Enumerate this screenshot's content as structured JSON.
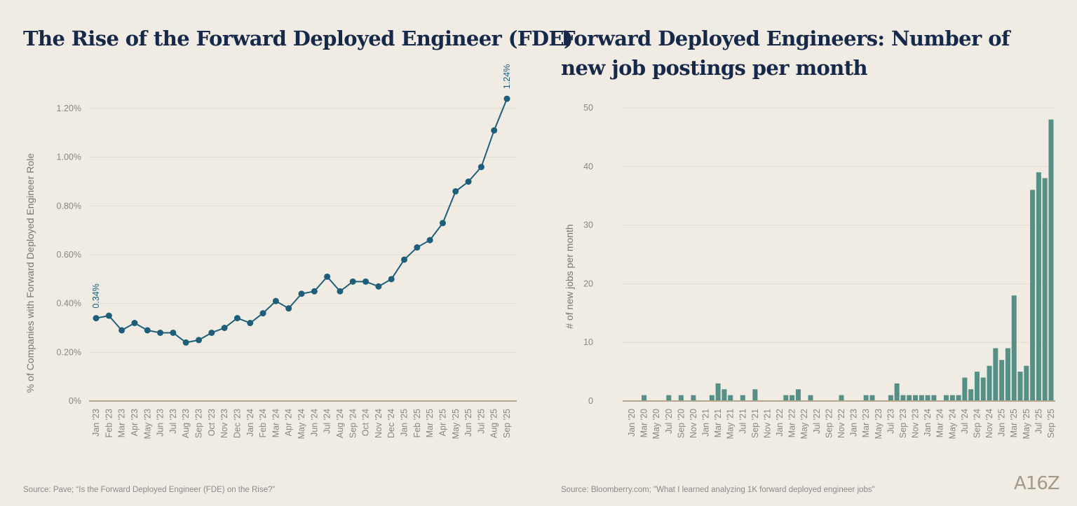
{
  "left": {
    "title": "The Rise of the Forward Deployed Engineer (FDE)",
    "source": "Source: Pave; “Is the Forward Deployed Engineer (FDE) on the Rise?”"
  },
  "right": {
    "title": "Forward Deployed Engineers: Number of new job postings per month",
    "source": "Source: Bloomberry.com; \"What I learned analyzing 1K forward deployed engineer jobs\""
  },
  "logo": "A16Z",
  "colors": {
    "line": "#1d5f7a",
    "bar": "#558f86",
    "grid": "#e2dcc8",
    "axis": "#b3a78f",
    "title": "#16294a"
  },
  "chart_data": [
    {
      "type": "line",
      "ylabel": "% of Companies with Forward Deployed Engineer Role",
      "ylim": [
        0,
        1.3
      ],
      "yticks": [
        "0%",
        "0.20%",
        "0.40%",
        "0.60%",
        "0.80%",
        "1.00%",
        "1.20%"
      ],
      "ytick_values": [
        0,
        0.2,
        0.4,
        0.6,
        0.8,
        1.0,
        1.2
      ],
      "grid": true,
      "annotations": [
        "0.34%",
        "1.24%"
      ],
      "categories": [
        "Jan '23",
        "Feb '23",
        "Mar '23",
        "Apr '23",
        "May '23",
        "Jun '23",
        "Jul '23",
        "Aug '23",
        "Sep '23",
        "Oct '23",
        "Nov '23",
        "Dec '23",
        "Jan '24",
        "Feb '24",
        "Mar '24",
        "Apr '24",
        "May '24",
        "Jun '24",
        "Jul '24",
        "Aug '24",
        "Sep '24",
        "Oct '24",
        "Nov '24",
        "Dec '24",
        "Jan '25",
        "Feb '25",
        "Mar '25",
        "Apr '25",
        "May '25",
        "Jun '25",
        "Jul '25",
        "Aug '25",
        "Sep '25"
      ],
      "values": [
        0.34,
        0.35,
        0.29,
        0.32,
        0.29,
        0.28,
        0.28,
        0.24,
        0.25,
        0.28,
        0.3,
        0.34,
        0.32,
        0.36,
        0.41,
        0.38,
        0.44,
        0.45,
        0.51,
        0.45,
        0.49,
        0.49,
        0.47,
        0.5,
        0.58,
        0.63,
        0.66,
        0.73,
        0.86,
        0.9,
        0.96,
        1.11,
        1.24
      ]
    },
    {
      "type": "bar",
      "ylabel": "# of new jobs per month",
      "ylim": [
        0,
        50
      ],
      "yticks": [
        "0",
        "10",
        "20",
        "30",
        "40",
        "50"
      ],
      "ytick_values": [
        0,
        10,
        20,
        30,
        40,
        50
      ],
      "grid": true,
      "categories": [
        "Jan '20",
        "Feb '20",
        "Mar '20",
        "Apr '20",
        "May '20",
        "Jun '20",
        "Jul '20",
        "Aug '20",
        "Sep '20",
        "Oct '20",
        "Nov '20",
        "Dec '20",
        "Jan '21",
        "Feb '21",
        "Mar '21",
        "Apr '21",
        "May '21",
        "Jun '21",
        "Jul '21",
        "Aug '21",
        "Sep '21",
        "Oct '21",
        "Nov '21",
        "Dec '21",
        "Jan '22",
        "Feb '22",
        "Mar '22",
        "Apr '22",
        "May '22",
        "Jun '22",
        "Jul '22",
        "Aug '22",
        "Sep '22",
        "Oct '22",
        "Nov '22",
        "Dec '22",
        "Jan '23",
        "Feb '23",
        "Mar '23",
        "Apr '23",
        "May '23",
        "Jun '23",
        "Jul '23",
        "Aug '23",
        "Sep '23",
        "Oct '23",
        "Nov '23",
        "Dec '23",
        "Jan '24",
        "Feb '24",
        "Mar '24",
        "Apr '24",
        "May '24",
        "Jun '24",
        "Jul '24",
        "Aug '24",
        "Sep '24",
        "Oct '24",
        "Nov '24",
        "Dec '24",
        "Jan '25",
        "Feb '25",
        "Mar '25",
        "Apr '25",
        "May '25",
        "Jun '25",
        "Jul '25",
        "Aug '25",
        "Sep '25"
      ],
      "xticks_shown": "every other month (Jan, Mar, May, Jul, Sep, Nov)",
      "values": [
        0,
        0,
        1,
        0,
        0,
        0,
        1,
        0,
        1,
        0,
        1,
        0,
        0,
        1,
        3,
        2,
        1,
        0,
        1,
        0,
        2,
        0,
        0,
        0,
        0,
        1,
        1,
        2,
        0,
        1,
        0,
        0,
        0,
        0,
        1,
        0,
        0,
        0,
        1,
        1,
        0,
        0,
        1,
        3,
        1,
        1,
        1,
        1,
        1,
        1,
        0,
        1,
        1,
        1,
        4,
        2,
        5,
        4,
        6,
        9,
        7,
        9,
        18,
        5,
        6,
        36,
        39,
        38,
        48
      ]
    }
  ]
}
